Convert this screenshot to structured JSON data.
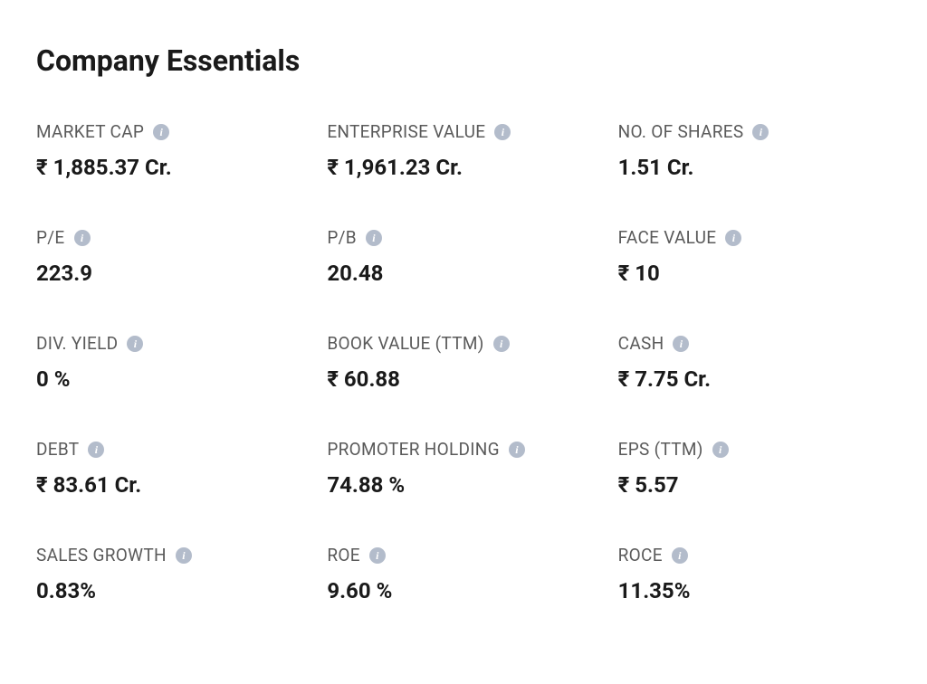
{
  "title": "Company Essentials",
  "metrics": [
    {
      "label": "MARKET CAP",
      "value": "₹ 1,885.37 Cr."
    },
    {
      "label": "ENTERPRISE VALUE",
      "value": "₹ 1,961.23 Cr."
    },
    {
      "label": "NO. OF SHARES",
      "value": "1.51 Cr."
    },
    {
      "label": "P/E",
      "value": "223.9"
    },
    {
      "label": "P/B",
      "value": "20.48"
    },
    {
      "label": "FACE VALUE",
      "value": "₹ 10"
    },
    {
      "label": "DIV. YIELD",
      "value": "0 %"
    },
    {
      "label": "BOOK VALUE (TTM)",
      "value": "₹  60.88"
    },
    {
      "label": "CASH",
      "value": "₹ 7.75 Cr."
    },
    {
      "label": "DEBT",
      "value": "₹ 83.61 Cr."
    },
    {
      "label": "PROMOTER HOLDING",
      "value": "74.88 %"
    },
    {
      "label": "EPS (TTM)",
      "value": "₹  5.57"
    },
    {
      "label": "SALES GROWTH",
      "value": "0.83%"
    },
    {
      "label": "ROE",
      "value": "9.60 %"
    },
    {
      "label": "ROCE",
      "value": "11.35%"
    }
  ],
  "colors": {
    "background": "#ffffff",
    "title_text": "#1a1a1a",
    "label_text": "#5a5a5a",
    "value_text": "#1a1a1a",
    "info_icon_bg": "#b3bccb",
    "info_icon_text": "#ffffff"
  },
  "typography": {
    "title_fontsize": 32,
    "title_fontweight": 700,
    "label_fontsize": 19,
    "label_fontweight": 400,
    "value_fontsize": 24,
    "value_fontweight": 700
  },
  "layout": {
    "columns": 3,
    "row_gap": 52,
    "column_gap": 20
  }
}
